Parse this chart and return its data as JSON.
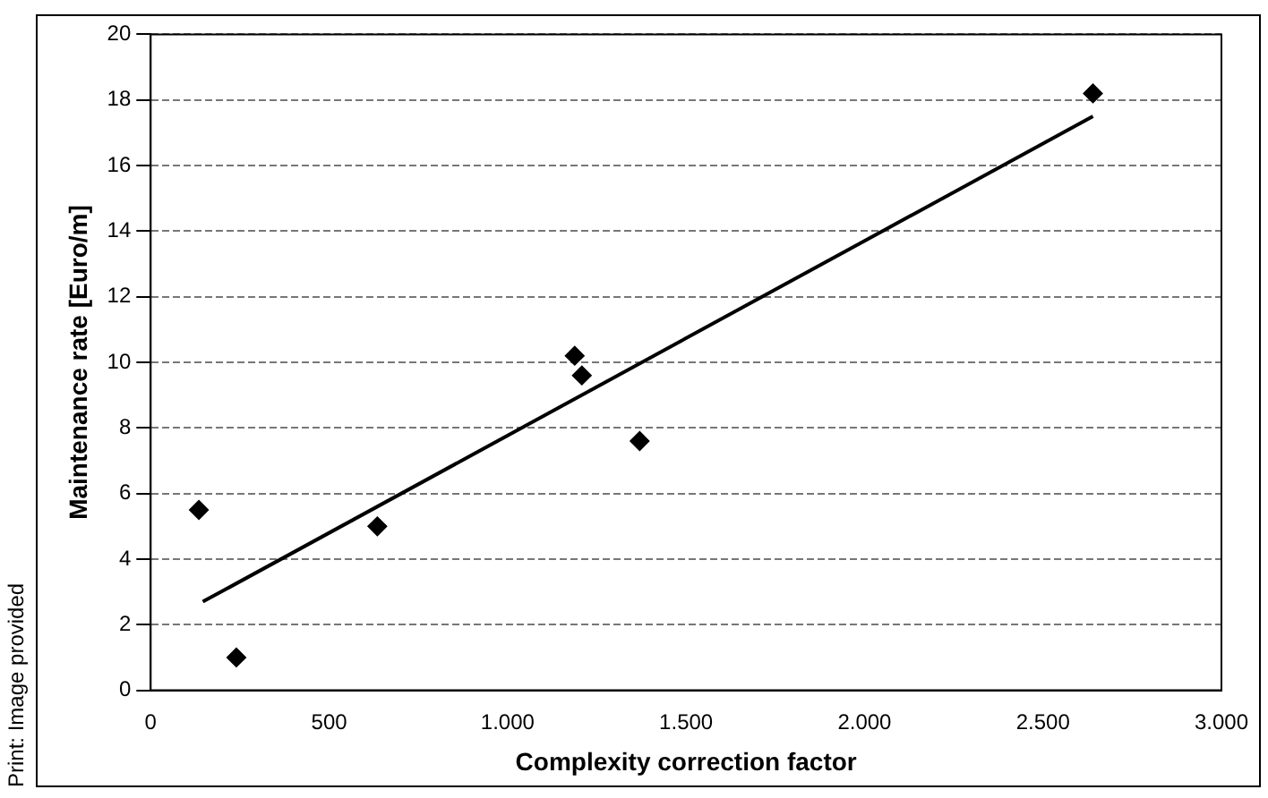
{
  "chart_data": {
    "type": "scatter",
    "xlabel": "Complexity correction factor",
    "ylabel": "Maintenance rate [Euro/m]",
    "annotations": [
      "Print: Image provided"
    ],
    "series": [
      {
        "type": "scatter",
        "color": "#000000",
        "marker": "diamond",
        "x": [
          135,
          240,
          635,
          1188,
          1208,
          1370,
          2640
        ],
        "values": [
          5.5,
          1.0,
          5.0,
          10.2,
          9.6,
          7.6,
          18.2
        ]
      },
      {
        "type": "line",
        "color": "#000000",
        "marker": "none",
        "line_style": "solid",
        "x": [
          146,
          2640
        ],
        "values": [
          2.7,
          17.5
        ]
      }
    ],
    "xlim": [
      0,
      3000
    ],
    "xticks": [
      0,
      500,
      {
        "value": 1000,
        "label": "1.000"
      },
      {
        "value": 1500,
        "label": "1.500"
      },
      {
        "value": 2000,
        "label": "2.000"
      },
      {
        "value": 2500,
        "label": "2.500"
      },
      {
        "value": 3000,
        "label": "3.000"
      }
    ],
    "ylim": [
      0,
      20
    ],
    "yticks": [
      0,
      2,
      4,
      6,
      8,
      10,
      12,
      14,
      16,
      18,
      20
    ],
    "grid": "y",
    "legend": false
  }
}
